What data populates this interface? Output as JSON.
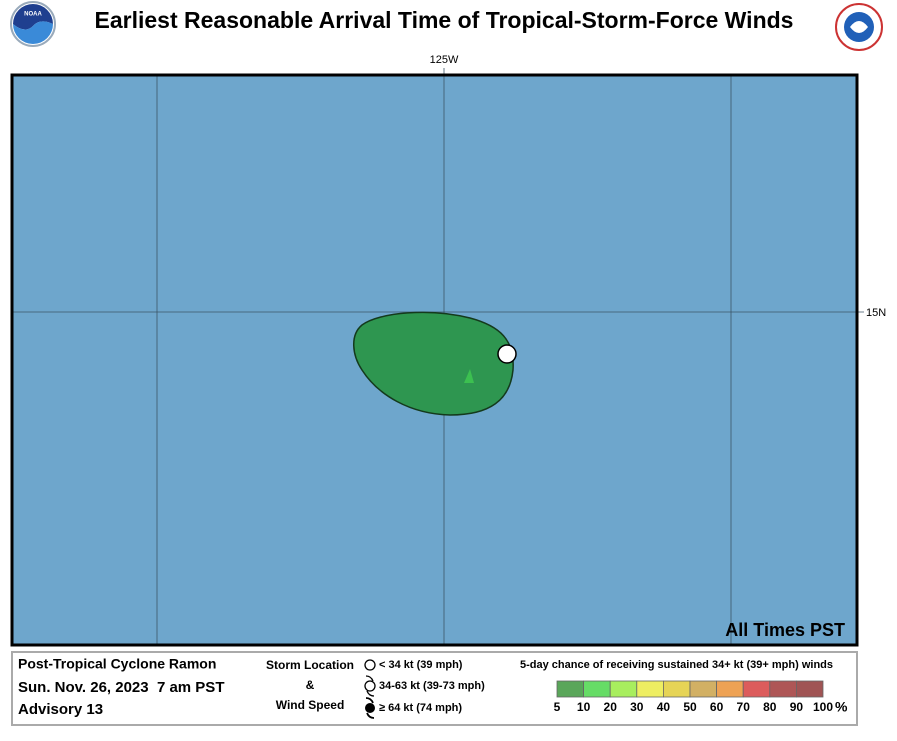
{
  "header": {
    "title": "Earliest Reasonable Arrival Time of Tropical-Storm-Force Winds"
  },
  "map": {
    "lon_label": "125W",
    "lat_label": "15N",
    "time_zone_note": "All Times PST",
    "ocean_color": "#6ea6cc",
    "swath_color": "#2e9650"
  },
  "footer": {
    "storm": [
      "Post-Tropical Cyclone Ramon",
      "Sun. Nov. 26, 2023  7 am PST",
      "Advisory 13"
    ],
    "storm_key": {
      "heading": [
        "Storm Location",
        "&",
        "Wind Speed"
      ],
      "items": [
        "< 34 kt (39 mph)",
        "34-63 kt (39-73 mph)",
        "≥ 64 kt (74 mph)"
      ]
    },
    "probability_key": {
      "title": "5-day chance of receiving sustained 34+ kt (39+ mph) winds",
      "unit": "%",
      "bins": [
        {
          "label": "5",
          "color": "#5aa65a"
        },
        {
          "label": "10",
          "color": "#66dc66"
        },
        {
          "label": "20",
          "color": "#a8ee5e"
        },
        {
          "label": "30",
          "color": "#eeee62"
        },
        {
          "label": "40",
          "color": "#e6d456"
        },
        {
          "label": "50",
          "color": "#d2b064"
        },
        {
          "label": "60",
          "color": "#eea254"
        },
        {
          "label": "70",
          "color": "#dc5c5c"
        },
        {
          "label": "80",
          "color": "#ae5656"
        },
        {
          "label": "90",
          "color": "#a05454"
        },
        {
          "label": "100",
          "color": "#b466c8"
        }
      ]
    }
  }
}
